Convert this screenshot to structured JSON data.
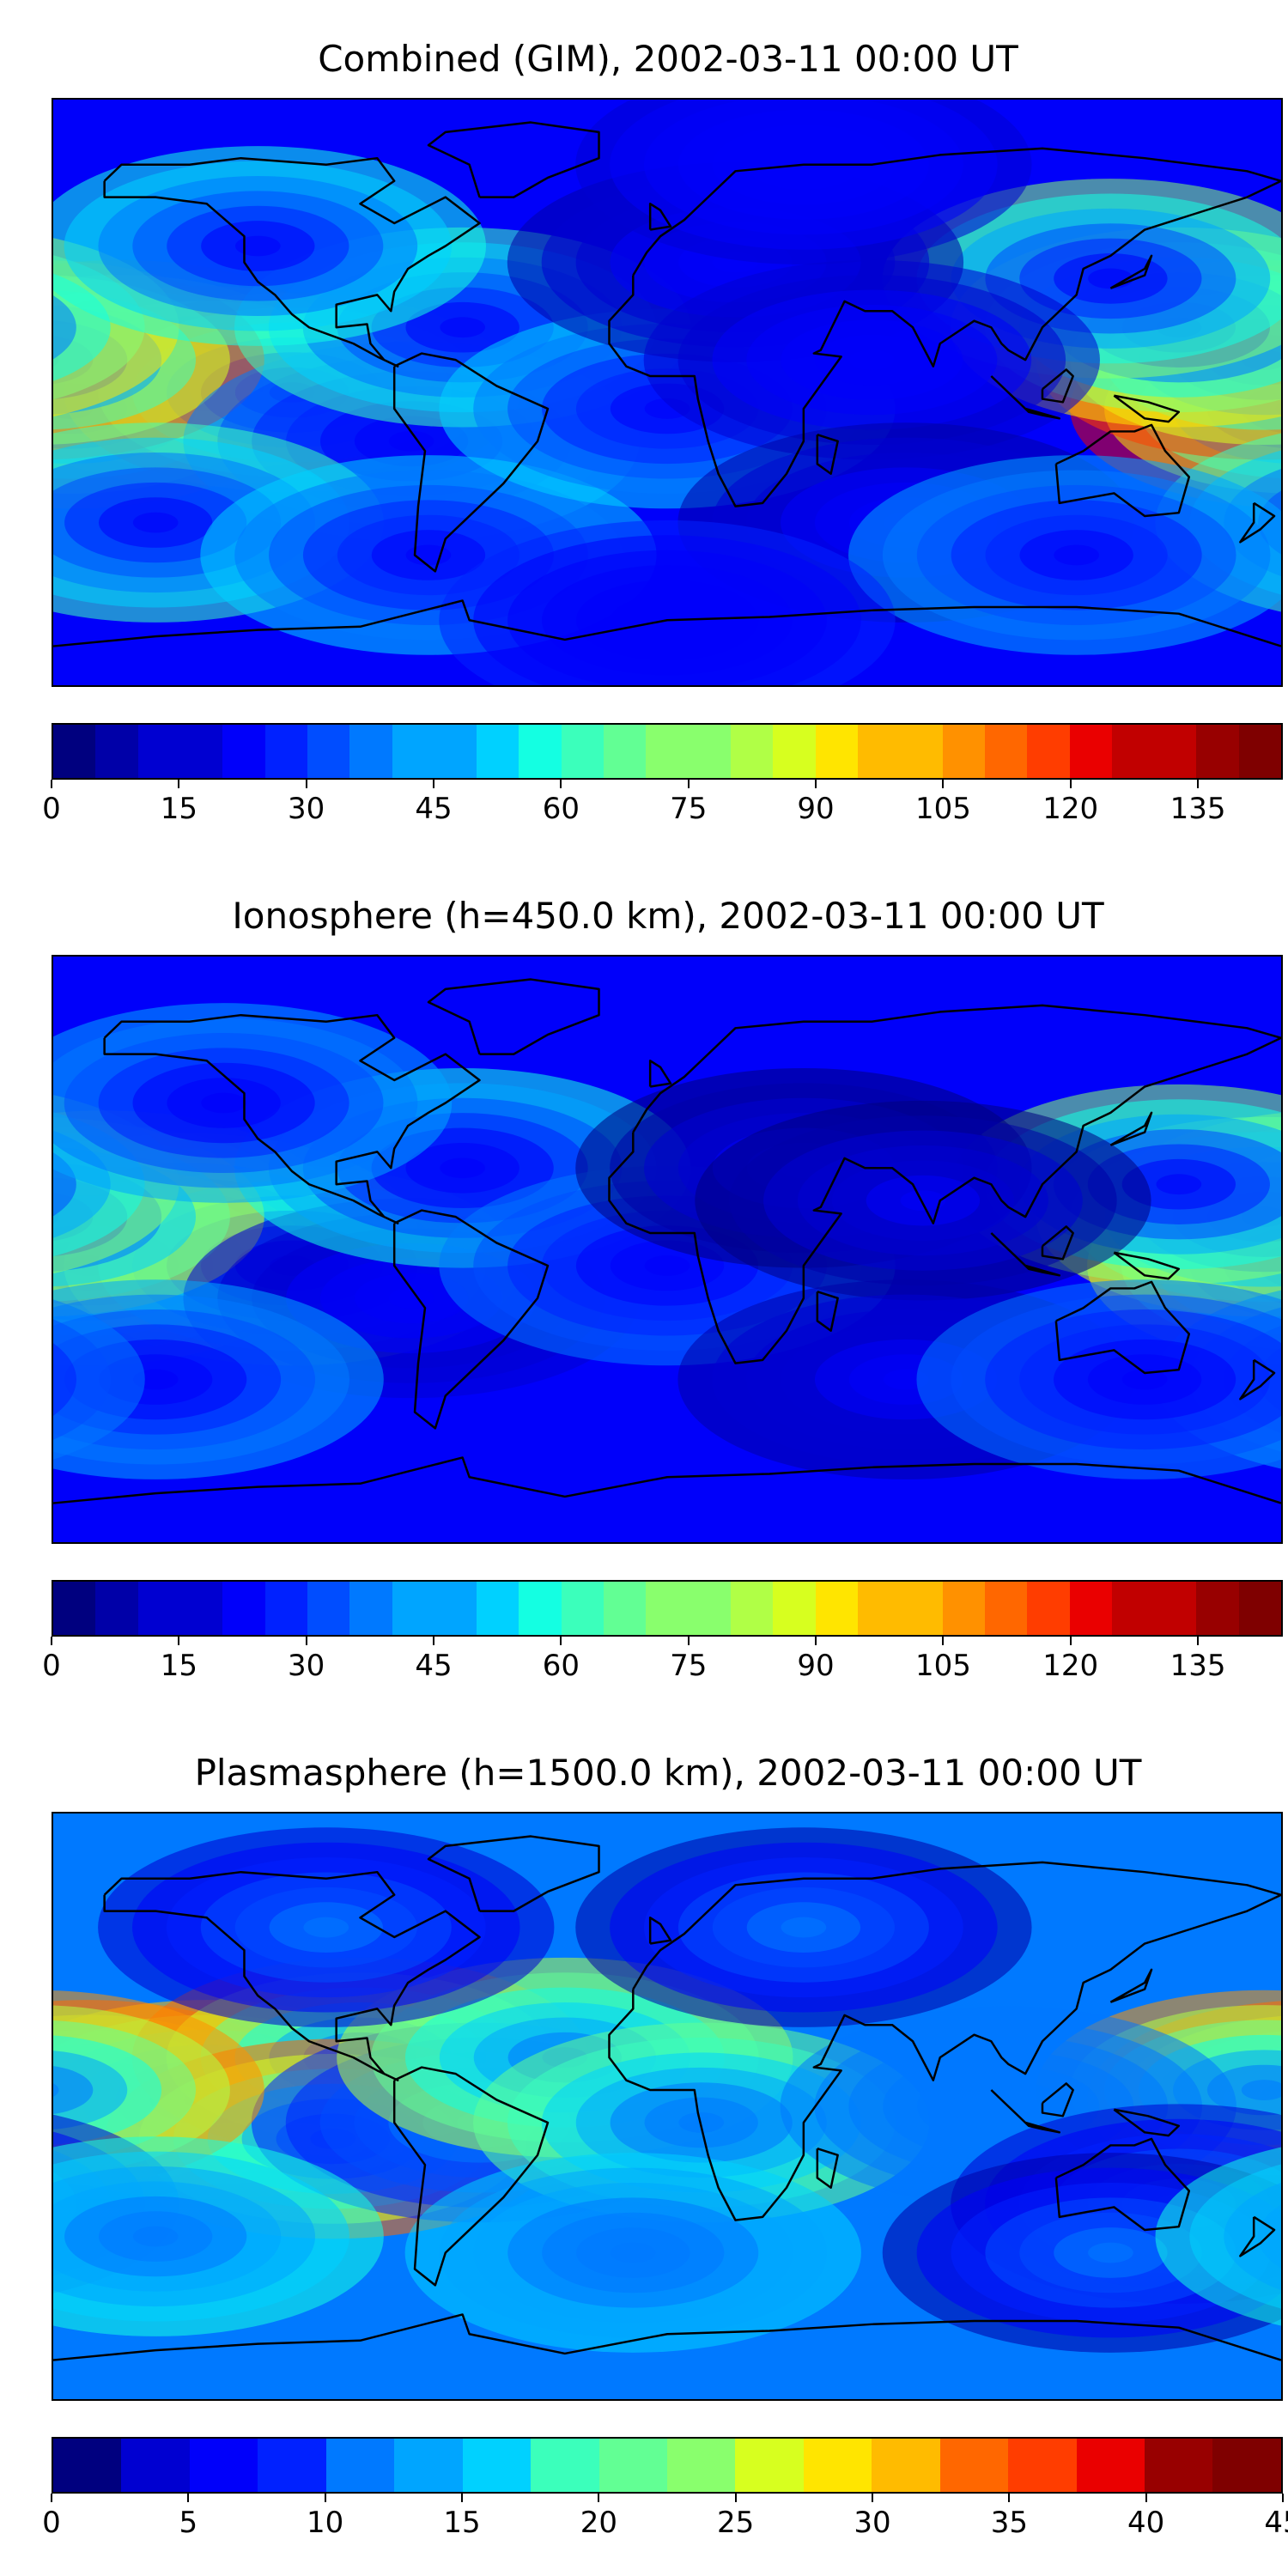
{
  "panels": [
    {
      "title": "Combined (GIM), 2002-03-11 00:00 UT",
      "colorbar": {
        "min": 0,
        "max": 145,
        "levels": 29,
        "ticks": [
          "0",
          "15",
          "30",
          "45",
          "60",
          "75",
          "90",
          "105",
          "120",
          "135"
        ],
        "tick_values": [
          0,
          15,
          30,
          45,
          60,
          75,
          90,
          105,
          120,
          135
        ]
      },
      "blobs": [
        {
          "lon": -160,
          "lat": 10,
          "value": 135
        },
        {
          "lon": -135,
          "lat": 2,
          "value": 120
        },
        {
          "lon": -175,
          "lat": -5,
          "value": 125
        },
        {
          "lon": -110,
          "lat": 0,
          "value": 110
        },
        {
          "lon": 175,
          "lat": 10,
          "value": 120
        },
        {
          "lon": 150,
          "lat": 20,
          "value": 95
        },
        {
          "lon": 130,
          "lat": 35,
          "value": 75
        },
        {
          "lon": -75,
          "lat": -15,
          "value": 40
        },
        {
          "lon": -60,
          "lat": 20,
          "value": 65
        },
        {
          "lon": -120,
          "lat": 45,
          "value": 60
        },
        {
          "lon": -150,
          "lat": -40,
          "value": 65
        },
        {
          "lon": -70,
          "lat": -50,
          "value": 50
        },
        {
          "lon": 0,
          "lat": -5,
          "value": 50
        },
        {
          "lon": 20,
          "lat": 40,
          "value": 10
        },
        {
          "lon": 60,
          "lat": 10,
          "value": 15
        },
        {
          "lon": 70,
          "lat": -40,
          "value": 12
        },
        {
          "lon": 120,
          "lat": -50,
          "value": 45
        },
        {
          "lon": 40,
          "lat": 70,
          "value": 18
        },
        {
          "lon": 0,
          "lat": -70,
          "value": 25
        }
      ],
      "background": 22
    },
    {
      "title": "Ionosphere  (h=450.0 km), 2002-03-11 00:00 UT",
      "colorbar": {
        "min": 0,
        "max": 145,
        "levels": 29,
        "ticks": [
          "0",
          "15",
          "30",
          "45",
          "60",
          "75",
          "90",
          "105",
          "120",
          "135"
        ],
        "tick_values": [
          0,
          15,
          30,
          45,
          60,
          75,
          90,
          105,
          120,
          135
        ]
      },
      "blobs": [
        {
          "lon": -165,
          "lat": 12,
          "value": 100
        },
        {
          "lon": -140,
          "lat": 5,
          "value": 90
        },
        {
          "lon": -170,
          "lat": -5,
          "value": 95
        },
        {
          "lon": -110,
          "lat": -5,
          "value": 75
        },
        {
          "lon": 175,
          "lat": 10,
          "value": 90
        },
        {
          "lon": 150,
          "lat": 20,
          "value": 75
        },
        {
          "lon": -75,
          "lat": -15,
          "value": 15
        },
        {
          "lon": -60,
          "lat": 25,
          "value": 55
        },
        {
          "lon": -130,
          "lat": 45,
          "value": 45
        },
        {
          "lon": -150,
          "lat": -40,
          "value": 45
        },
        {
          "lon": 0,
          "lat": -5,
          "value": 40
        },
        {
          "lon": 40,
          "lat": 25,
          "value": 5
        },
        {
          "lon": 75,
          "lat": 15,
          "value": 3
        },
        {
          "lon": 70,
          "lat": -40,
          "value": 10
        },
        {
          "lon": 140,
          "lat": -40,
          "value": 40
        }
      ],
      "background": 20
    },
    {
      "title": "Plasmasphere (h=1500.0 km), 2002-03-11 00:00 UT",
      "colorbar": {
        "min": 0,
        "max": 45,
        "levels": 18,
        "ticks": [
          "0",
          "5",
          "10",
          "15",
          "20",
          "25",
          "30",
          "35",
          "40",
          "45"
        ],
        "tick_values": [
          0,
          5,
          10,
          15,
          20,
          25,
          30,
          35,
          40,
          45
        ]
      },
      "blobs": [
        {
          "lon": -170,
          "lat": 2,
          "value": 37
        },
        {
          "lon": -135,
          "lat": 2,
          "value": 30
        },
        {
          "lon": -90,
          "lat": 15,
          "value": 34
        },
        {
          "lon": -98,
          "lat": -10,
          "value": 35
        },
        {
          "lon": -55,
          "lat": -5,
          "value": 8
        },
        {
          "lon": -30,
          "lat": 15,
          "value": 25
        },
        {
          "lon": 10,
          "lat": -5,
          "value": 22
        },
        {
          "lon": 175,
          "lat": 5,
          "value": 32
        },
        {
          "lon": 100,
          "lat": 0,
          "value": 12
        },
        {
          "lon": 150,
          "lat": -30,
          "value": 5
        },
        {
          "lon": 130,
          "lat": -45,
          "value": 3
        },
        {
          "lon": 40,
          "lat": 55,
          "value": 3
        },
        {
          "lon": -100,
          "lat": 55,
          "value": 5
        },
        {
          "lon": -10,
          "lat": -45,
          "value": 15
        },
        {
          "lon": -150,
          "lat": -40,
          "value": 18
        }
      ],
      "background": 12
    }
  ],
  "colormap": [
    "#00007f",
    "#0000a8",
    "#0000d1",
    "#0000fa",
    "#0021ff",
    "#004dff",
    "#0079ff",
    "#00a5ff",
    "#00d1ff",
    "#14ffe2",
    "#3bffbb",
    "#62ff94",
    "#89ff6d",
    "#b0ff46",
    "#d7ff1f",
    "#ffe500",
    "#ffbb00",
    "#ff9100",
    "#ff6700",
    "#ff3d00",
    "#ea0000",
    "#c10000",
    "#980000",
    "#7f0000"
  ]
}
